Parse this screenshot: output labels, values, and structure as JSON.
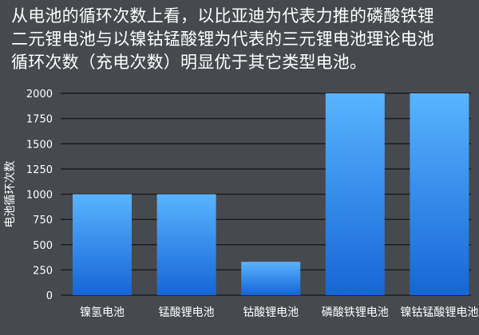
{
  "heading": {
    "line1": "从电池的循环次数上看，以比亚迪为代表力推的磷酸铁锂",
    "line2": "二元锂电池与以镍钴锰酸锂为代表的三元锂电池理论电池",
    "line3": "循环次数（充电次数）明显优于其它类型电池。"
  },
  "colors": {
    "background": "#46494e",
    "grid": "#1c1d20",
    "bar_top": "#58b4ff",
    "bar_bottom": "#1566d6",
    "text": "#ffffff"
  },
  "chart_data": {
    "type": "bar",
    "title": "",
    "xlabel": "",
    "ylabel": "电池循环次数",
    "categories": [
      "镍氢电池",
      "锰酸锂电池",
      "钴酸锂电池",
      "磷酸铁锂电池",
      "镍钴锰酸锂电池"
    ],
    "values": [
      1000,
      1000,
      330,
      2000,
      2000
    ],
    "ylim": [
      0,
      2000
    ],
    "yticks": [
      0,
      250,
      500,
      750,
      1000,
      1250,
      1500,
      1750,
      2000
    ],
    "grid": true,
    "legend": "none"
  }
}
